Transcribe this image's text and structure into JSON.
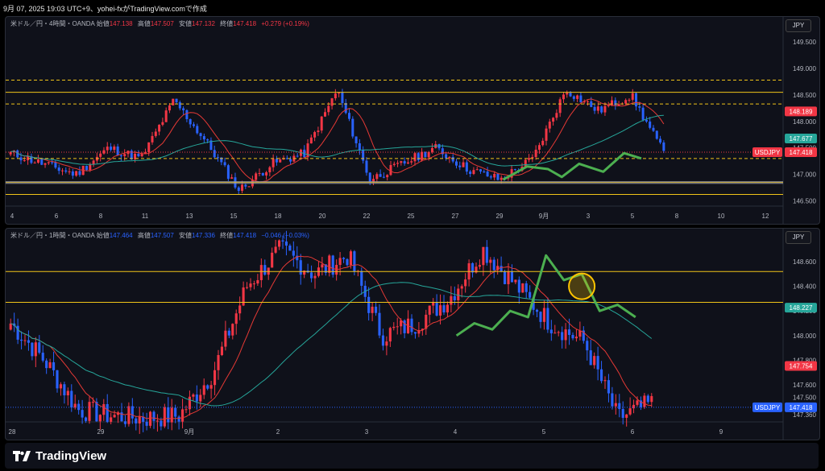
{
  "header": {
    "text": "9月 07, 2025 19:03 UTC+9、yohei-fxがTradingView.comで作成"
  },
  "colors": {
    "bg": "#0f111a",
    "up": "#f23645",
    "down": "#2962ff",
    "ma_fast": "#e53935",
    "ma_slow": "#26a69a",
    "level": "#f0c419",
    "hand": "#4caf50"
  },
  "panel1": {
    "legend": {
      "symbol": "米ドル／円・4時間・OANDA",
      "open_label": "始値",
      "open": "147.138",
      "high_label": "高値",
      "high": "147.507",
      "low_label": "安値",
      "low": "147.132",
      "close_label": "終値",
      "close": "147.418",
      "change": "+0.279 (+0.19%)"
    },
    "currency": "JPY",
    "price_ticks": [
      "149.500",
      "149.000",
      "148.500",
      "148.000",
      "147.500",
      "147.000",
      "146.500"
    ],
    "date_ticks": [
      "4",
      "6",
      "8",
      "11",
      "13",
      "15",
      "18",
      "20",
      "22",
      "25",
      "27",
      "29",
      "9月",
      "3",
      "5",
      "8",
      "10",
      "12"
    ],
    "badges": [
      {
        "text": "148.189",
        "color": "#f23645"
      },
      {
        "text": "147.677",
        "color": "#26a69a"
      },
      {
        "text": "USDJPY",
        "color": "#f23645"
      },
      {
        "text": "147.418",
        "color": "#f23645"
      }
    ],
    "chart_data": {
      "type": "candlestick",
      "title": "米ドル／円・4時間・OANDA",
      "ylim": [
        146.4,
        149.7
      ],
      "levels": [
        148.78,
        148.55,
        148.33,
        147.3,
        146.85,
        146.62
      ],
      "last": 147.418,
      "ma_fast_last": 148.189,
      "ma_slow_last": 147.677
    }
  },
  "panel2": {
    "legend": {
      "symbol": "米ドル／円・1時間・OANDA",
      "open_label": "始値",
      "open": "147.464",
      "high_label": "高値",
      "high": "147.507",
      "low_label": "安値",
      "low": "147.336",
      "close_label": "終値",
      "close": "147.418",
      "change": "−0.046 (−0.03%)"
    },
    "currency": "JPY",
    "price_ticks": [
      "148.600",
      "148.400",
      "148.200",
      "148.000",
      "147.800",
      "147.600",
      "147.500",
      "147.360"
    ],
    "date_ticks": [
      "28",
      "29",
      "9月",
      "2",
      "3",
      "4",
      "5",
      "6",
      "9"
    ],
    "badges": [
      {
        "text": "148.227",
        "color": "#26a69a"
      },
      {
        "text": "147.754",
        "color": "#f23645"
      },
      {
        "text": "USDJPY",
        "color": "#2962ff"
      },
      {
        "text": "147.418",
        "color": "#2962ff"
      }
    ],
    "chart_data": {
      "type": "candlestick",
      "title": "米ドル／円・1時間・OANDA",
      "ylim": [
        147.3,
        148.75
      ],
      "levels": [
        148.52,
        148.27
      ],
      "last": 147.418,
      "ma_fast_last": 147.754,
      "ma_slow_last": 148.227
    }
  },
  "footer": {
    "brand": "TradingView"
  }
}
